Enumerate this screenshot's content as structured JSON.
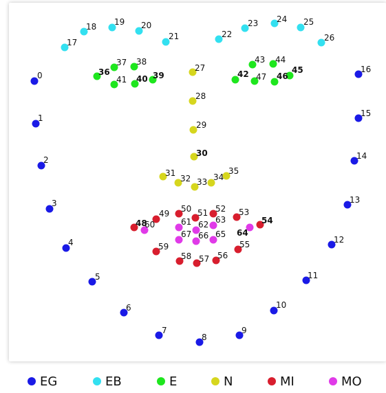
{
  "groups": [
    {
      "key": "EG",
      "label": "EG",
      "color": "#1a1ae6"
    },
    {
      "key": "EB",
      "label": "EB",
      "color": "#33e0f0"
    },
    {
      "key": "E",
      "label": "E",
      "color": "#1ee61e"
    },
    {
      "key": "N",
      "label": "N",
      "color": "#d6d61e"
    },
    {
      "key": "MI",
      "label": "MI",
      "color": "#d81e2e"
    },
    {
      "key": "MO",
      "label": "MO",
      "color": "#e03ae8"
    }
  ],
  "points": [
    {
      "id": "0",
      "group": "EG"
    },
    {
      "id": "1",
      "group": "EG"
    },
    {
      "id": "2",
      "group": "EG"
    },
    {
      "id": "3",
      "group": "EG"
    },
    {
      "id": "4",
      "group": "EG"
    },
    {
      "id": "5",
      "group": "EG"
    },
    {
      "id": "6",
      "group": "EG"
    },
    {
      "id": "7",
      "group": "EG"
    },
    {
      "id": "8",
      "group": "EG"
    },
    {
      "id": "9",
      "group": "EG"
    },
    {
      "id": "10",
      "group": "EG"
    },
    {
      "id": "11",
      "group": "EG"
    },
    {
      "id": "12",
      "group": "EG"
    },
    {
      "id": "13",
      "group": "EG"
    },
    {
      "id": "14",
      "group": "EG"
    },
    {
      "id": "15",
      "group": "EG"
    },
    {
      "id": "16",
      "group": "EG"
    },
    {
      "id": "17",
      "group": "EB"
    },
    {
      "id": "18",
      "group": "EB"
    },
    {
      "id": "19",
      "group": "EB"
    },
    {
      "id": "20",
      "group": "EB"
    },
    {
      "id": "21",
      "group": "EB"
    },
    {
      "id": "22",
      "group": "EB"
    },
    {
      "id": "23",
      "group": "EB"
    },
    {
      "id": "24",
      "group": "EB"
    },
    {
      "id": "25",
      "group": "EB"
    },
    {
      "id": "26",
      "group": "EB"
    },
    {
      "id": "27",
      "group": "N"
    },
    {
      "id": "28",
      "group": "N"
    },
    {
      "id": "29",
      "group": "N"
    },
    {
      "id": "30",
      "group": "N"
    },
    {
      "id": "31",
      "group": "N"
    },
    {
      "id": "32",
      "group": "N"
    },
    {
      "id": "33",
      "group": "N"
    },
    {
      "id": "34",
      "group": "N"
    },
    {
      "id": "35",
      "group": "N"
    },
    {
      "id": "36",
      "group": "E"
    },
    {
      "id": "37",
      "group": "E"
    },
    {
      "id": "38",
      "group": "E"
    },
    {
      "id": "39",
      "group": "E"
    },
    {
      "id": "40",
      "group": "E"
    },
    {
      "id": "41",
      "group": "E"
    },
    {
      "id": "42",
      "group": "E"
    },
    {
      "id": "43",
      "group": "E"
    },
    {
      "id": "44",
      "group": "E"
    },
    {
      "id": "45",
      "group": "E"
    },
    {
      "id": "46",
      "group": "E"
    },
    {
      "id": "47",
      "group": "E"
    },
    {
      "id": "48",
      "group": "MI"
    },
    {
      "id": "49",
      "group": "MI"
    },
    {
      "id": "50",
      "group": "MI"
    },
    {
      "id": "51",
      "group": "MI"
    },
    {
      "id": "52",
      "group": "MI"
    },
    {
      "id": "53",
      "group": "MI"
    },
    {
      "id": "54",
      "group": "MI"
    },
    {
      "id": "55",
      "group": "MI"
    },
    {
      "id": "56",
      "group": "MI"
    },
    {
      "id": "57",
      "group": "MI"
    },
    {
      "id": "58",
      "group": "MI"
    },
    {
      "id": "59",
      "group": "MI"
    },
    {
      "id": "60",
      "group": "MO"
    },
    {
      "id": "61",
      "group": "MO"
    },
    {
      "id": "62",
      "group": "MO"
    },
    {
      "id": "63",
      "group": "MO"
    },
    {
      "id": "64",
      "group": "MO"
    },
    {
      "id": "65",
      "group": "MO"
    },
    {
      "id": "66",
      "group": "MO"
    },
    {
      "id": "67",
      "group": "MO"
    }
  ]
}
